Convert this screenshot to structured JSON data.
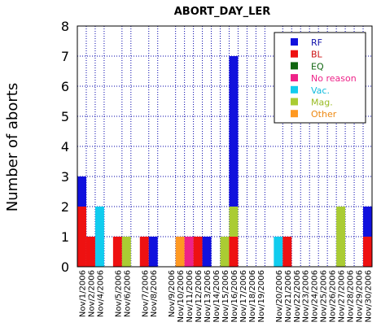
{
  "chart_data": {
    "type": "bar",
    "stacked": true,
    "title": "ABORT_DAY_LER",
    "xlabel": "",
    "ylabel": "Number of aborts",
    "ylim": [
      0,
      8
    ],
    "yticks": [
      "0",
      "1",
      "2",
      "3",
      "4",
      "5",
      "6",
      "7",
      "8"
    ],
    "grid": true,
    "legend_position": "top-right",
    "categories": [
      "Nov/1/2006",
      "Nov/2/2006",
      "Nov/4/2006",
      "Nov/5/2006",
      "Nov/6/2006",
      "Nov/7/2006",
      "Nov/8/2006",
      "Nov/9/2006",
      "Nov/10/2006",
      "Nov/11/2006",
      "Nov/12/2006",
      "Nov/13/2006",
      "Nov/14/2006",
      "Nov/15/2006",
      "Nov/16/2006",
      "Nov/17/2006",
      "Nov/18/2006",
      "Nov/19/2006",
      "Nov/20/2006",
      "Nov/21/2006",
      "Nov/22/2006",
      "Nov/23/2006",
      "Nov/24/2006",
      "Nov/25/2006",
      "Nov/26/2006",
      "Nov/27/2006",
      "Nov/28/2006",
      "Nov/29/2006",
      "Nov/30/2006"
    ],
    "bar_positions": [
      0,
      1,
      2,
      4,
      5,
      7,
      8,
      10,
      11,
      12,
      13,
      14,
      15,
      16,
      17,
      18,
      19,
      20,
      22,
      23,
      24,
      25,
      26,
      27,
      28,
      29,
      30,
      31,
      32
    ],
    "series": [
      {
        "name": "BL",
        "color": "#ee1111",
        "values": [
          2,
          1,
          0,
          1,
          0,
          1,
          0,
          0,
          0,
          0,
          1,
          0,
          0,
          0,
          1,
          0,
          0,
          0,
          0,
          1,
          0,
          0,
          0,
          0,
          0,
          0,
          0,
          0,
          1
        ]
      },
      {
        "name": "Vac.",
        "color": "#11ccee",
        "values": [
          0,
          0,
          2,
          0,
          0,
          0,
          0,
          0,
          0,
          0,
          0,
          0,
          0,
          0,
          0,
          0,
          0,
          0,
          1,
          0,
          0,
          0,
          0,
          0,
          0,
          0,
          0,
          0,
          0
        ]
      },
      {
        "name": "Mag.",
        "color": "#aacc33",
        "values": [
          0,
          0,
          0,
          0,
          1,
          0,
          0,
          0,
          0,
          0,
          0,
          0,
          0,
          1,
          1,
          0,
          0,
          0,
          0,
          0,
          0,
          0,
          0,
          0,
          0,
          2,
          0,
          0,
          0
        ]
      },
      {
        "name": "Other",
        "color": "#ff9922",
        "values": [
          0,
          0,
          0,
          0,
          0,
          0,
          0,
          0,
          1,
          0,
          0,
          0,
          0,
          0,
          0,
          0,
          0,
          0,
          0,
          0,
          0,
          0,
          0,
          0,
          0,
          0,
          0,
          0,
          0
        ]
      },
      {
        "name": "No reason",
        "color": "#ee2288",
        "values": [
          0,
          0,
          0,
          0,
          0,
          0,
          0,
          0,
          0,
          1,
          0,
          0,
          0,
          0,
          0,
          0,
          0,
          0,
          0,
          0,
          0,
          0,
          0,
          0,
          0,
          0,
          0,
          0,
          0
        ]
      },
      {
        "name": "EQ",
        "color": "#116611",
        "values": [
          0,
          0,
          0,
          0,
          0,
          0,
          0,
          0,
          0,
          0,
          0,
          0,
          0,
          0,
          0,
          0,
          0,
          0,
          0,
          0,
          0,
          0,
          0,
          0,
          0,
          0,
          0,
          0,
          0
        ]
      },
      {
        "name": "RF",
        "color": "#1111dd",
        "values": [
          1,
          0,
          0,
          0,
          0,
          0,
          1,
          0,
          0,
          0,
          0,
          1,
          0,
          0,
          5,
          0,
          0,
          0,
          0,
          0,
          0,
          0,
          0,
          0,
          0,
          0,
          0,
          0,
          1
        ]
      }
    ],
    "legend": [
      {
        "name": "RF",
        "color": "#1111dd",
        "text_color": "#1111aa"
      },
      {
        "name": "BL",
        "color": "#ee1111",
        "text_color": "#cc1111"
      },
      {
        "name": "EQ",
        "color": "#116611",
        "text_color": "#116611"
      },
      {
        "name": "No reason",
        "color": "#ee2288",
        "text_color": "#ee2288"
      },
      {
        "name": "Vac.",
        "color": "#11ccee",
        "text_color": "#11bbdd"
      },
      {
        "name": "Mag.",
        "color": "#aacc33",
        "text_color": "#99bb22"
      },
      {
        "name": "Other",
        "color": "#ff9922",
        "text_color": "#ee8811"
      }
    ]
  }
}
